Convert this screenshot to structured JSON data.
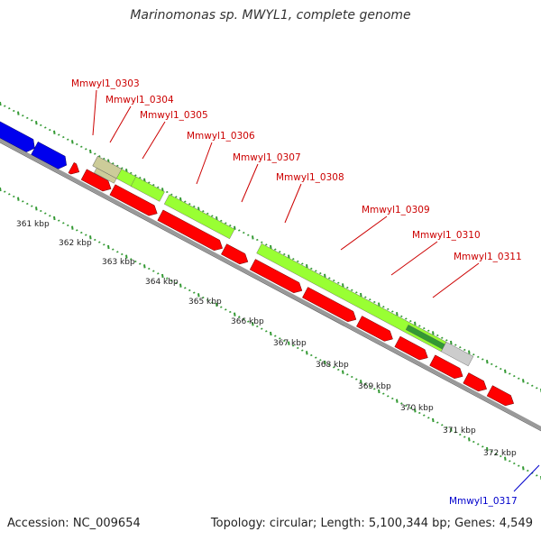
{
  "header": {
    "title": "Marinomonas sp. MWYL1, complete genome"
  },
  "footer": {
    "accession": "Accession: NC_009654",
    "summary": "Topology: circular; Length: 5,100,344 bp; Genes: 4,549"
  },
  "colors": {
    "cds_forward": "#ff0000",
    "cds_reverse": "#0000ee",
    "feature_green": "#99ff33",
    "feature_dark_green": "#339933",
    "feature_tan": "#cccc99",
    "feature_gray": "#cccccc",
    "backbone": "#999999",
    "gc_ticks": "#339933",
    "label_red": "#cc0000",
    "label_blue": "#0000cc",
    "tick_label": "#222222"
  },
  "genome_map": {
    "kbp_ticks": [
      "361 kbp",
      "362 kbp",
      "363 kbp",
      "364 kbp",
      "365 kbp",
      "366 kbp",
      "367 kbp",
      "368 kbp",
      "369 kbp",
      "370 kbp",
      "371 kbp",
      "372 kbp"
    ],
    "gene_labels": [
      {
        "text": "Mmwyl1_0303",
        "strand": "forward"
      },
      {
        "text": "Mmwyl1_0304",
        "strand": "forward"
      },
      {
        "text": "Mmwyl1_0305",
        "strand": "forward"
      },
      {
        "text": "Mmwyl1_0306",
        "strand": "forward"
      },
      {
        "text": "Mmwyl1_0307",
        "strand": "forward"
      },
      {
        "text": "Mmwyl1_0308",
        "strand": "forward"
      },
      {
        "text": "Mmwyl1_0309",
        "strand": "forward"
      },
      {
        "text": "Mmwyl1_0310",
        "strand": "forward"
      },
      {
        "text": "Mmwyl1_0311",
        "strand": "forward"
      },
      {
        "text": "Mmwyl1_0317",
        "strand": "reverse"
      }
    ]
  }
}
